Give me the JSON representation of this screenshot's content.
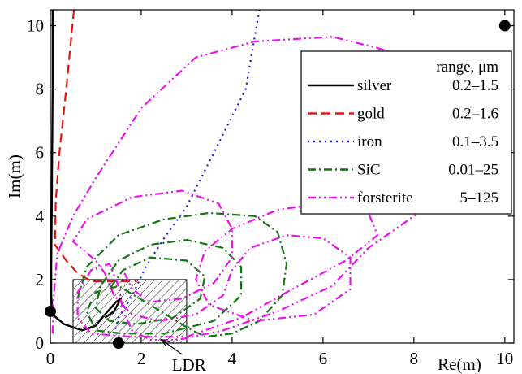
{
  "chart_data": {
    "type": "line",
    "xlabel": "Re(m)",
    "ylabel": "Im(m)",
    "xlim": [
      0,
      10.2
    ],
    "ylim": [
      0,
      10.5
    ],
    "x_ticks": [
      0,
      2,
      4,
      6,
      8,
      10
    ],
    "y_ticks": [
      0,
      2,
      4,
      6,
      8,
      10
    ],
    "legend": {
      "placement": "top-right",
      "header": "range, μm",
      "entries": [
        {
          "name": "silver",
          "range": "0.2–1.5",
          "color": "#000000",
          "dash": "solid"
        },
        {
          "name": "gold",
          "range": "0.2–1.6",
          "color": "#e8130f",
          "dash": "dashed"
        },
        {
          "name": "iron",
          "range": "0.1–3.5",
          "color": "#1a1aee",
          "dash": "dotted"
        },
        {
          "name": "SiC",
          "range": "0.01–25",
          "color": "#117711",
          "dash": "dashdot"
        },
        {
          "name": "forsterite",
          "range": "5–125",
          "color": "#ee11ee",
          "dash": "dashdotdot"
        }
      ]
    },
    "region": {
      "label": "LDR",
      "x": [
        0.5,
        3.0
      ],
      "y": [
        0,
        2.0
      ],
      "hatched": true
    },
    "markers": [
      {
        "x": 0.0,
        "y": 1.0
      },
      {
        "x": 1.5,
        "y": 0.0
      },
      {
        "x": 10.0,
        "y": 10.0
      }
    ],
    "series": [
      {
        "name": "silver",
        "color": "#000000",
        "dash": "solid",
        "points": [
          [
            0.05,
            10.5
          ],
          [
            0.05,
            8.0
          ],
          [
            0.04,
            6.0
          ],
          [
            0.03,
            4.0
          ],
          [
            0.02,
            2.5
          ],
          [
            0.02,
            1.5
          ],
          [
            0.05,
            0.9
          ],
          [
            0.3,
            0.6
          ],
          [
            0.7,
            0.4
          ],
          [
            1.0,
            0.55
          ],
          [
            1.2,
            0.9
          ],
          [
            1.45,
            1.3
          ],
          [
            1.55,
            1.4
          ],
          [
            1.4,
            1.0
          ],
          [
            1.2,
            0.8
          ]
        ]
      },
      {
        "name": "gold",
        "color": "#e8130f",
        "dash": "dashed",
        "points": [
          [
            0.52,
            10.5
          ],
          [
            0.35,
            8.0
          ],
          [
            0.2,
            6.0
          ],
          [
            0.12,
            4.5
          ],
          [
            0.1,
            3.1
          ],
          [
            0.35,
            2.6
          ],
          [
            0.6,
            2.2
          ],
          [
            0.9,
            1.95
          ],
          [
            1.5,
            1.95
          ],
          [
            1.9,
            1.95
          ]
        ]
      },
      {
        "name": "iron",
        "color": "#1a1aee",
        "dash": "dotted",
        "points": [
          [
            4.6,
            10.5
          ],
          [
            4.3,
            8.0
          ],
          [
            3.6,
            6.0
          ],
          [
            3.0,
            4.3
          ],
          [
            2.5,
            3.3
          ],
          [
            2.1,
            2.4
          ],
          [
            1.8,
            1.5
          ],
          [
            1.5,
            0.8
          ],
          [
            1.4,
            0.3
          ]
        ]
      },
      {
        "name": "SiC",
        "color": "#117711",
        "dash": "dashdot",
        "points": [
          [
            0.6,
            1.4
          ],
          [
            0.8,
            2.4
          ],
          [
            1.5,
            3.4
          ],
          [
            2.5,
            3.9
          ],
          [
            3.5,
            4.1
          ],
          [
            4.5,
            4.0
          ],
          [
            5.0,
            3.5
          ],
          [
            5.2,
            2.5
          ],
          [
            5.1,
            1.5
          ],
          [
            4.6,
            0.7
          ],
          [
            4.0,
            0.3
          ],
          [
            3.4,
            0.2
          ],
          [
            3.0,
            0.5
          ],
          [
            2.2,
            1.2
          ],
          [
            1.5,
            1.8
          ],
          [
            1.0,
            1.6
          ],
          [
            0.8,
            1.0
          ],
          [
            1.0,
            0.4
          ],
          [
            1.6,
            0.3
          ],
          [
            2.5,
            0.3
          ],
          [
            3.6,
            0.7
          ],
          [
            4.2,
            1.5
          ],
          [
            4.2,
            2.4
          ],
          [
            3.8,
            3.0
          ],
          [
            3.0,
            3.25
          ],
          [
            2.2,
            3.1
          ],
          [
            1.5,
            2.6
          ],
          [
            1.1,
            1.8
          ],
          [
            1.0,
            1.1
          ],
          [
            1.3,
            0.7
          ],
          [
            1.9,
            0.6
          ],
          [
            2.7,
            0.8
          ],
          [
            3.3,
            1.4
          ],
          [
            3.4,
            2.1
          ],
          [
            3.0,
            2.6
          ],
          [
            2.2,
            2.7
          ],
          [
            1.6,
            2.3
          ],
          [
            1.3,
            1.7
          ]
        ]
      },
      {
        "name": "forsterite",
        "color": "#ee11ee",
        "dash": "dashdotdot",
        "points": [
          [
            0.05,
            0.3
          ],
          [
            0.06,
            1.2
          ],
          [
            0.15,
            2.8
          ],
          [
            0.5,
            4.0
          ],
          [
            1.0,
            5.2
          ],
          [
            2.0,
            7.4
          ],
          [
            3.2,
            9.0
          ],
          [
            4.5,
            9.5
          ],
          [
            6.2,
            9.65
          ],
          [
            7.2,
            9.3
          ],
          [
            8.2,
            8.8
          ],
          [
            9.2,
            8.0
          ],
          [
            9.6,
            6.2
          ],
          [
            9.2,
            5.0
          ],
          [
            8.0,
            4.0
          ],
          [
            7.0,
            3.0
          ],
          [
            6.2,
            1.8
          ],
          [
            5.0,
            1.0
          ],
          [
            3.8,
            0.4
          ],
          [
            2.8,
            0.1
          ],
          [
            2.2,
            0.1
          ],
          [
            1.8,
            0.4
          ],
          [
            1.6,
            1.0
          ],
          [
            1.5,
            1.8
          ],
          [
            1.3,
            2.5
          ],
          [
            0.9,
            2.3
          ],
          [
            0.6,
            1.6
          ],
          [
            0.6,
            0.8
          ],
          [
            0.9,
            0.3
          ],
          [
            1.8,
            0.2
          ],
          [
            3.0,
            0.2
          ],
          [
            4.2,
            0.8
          ],
          [
            5.2,
            1.6
          ],
          [
            6.5,
            2.6
          ],
          [
            7.2,
            3.4
          ],
          [
            7.0,
            4.1
          ],
          [
            6.0,
            4.4
          ],
          [
            5.0,
            4.2
          ],
          [
            4.0,
            3.6
          ],
          [
            3.4,
            2.9
          ],
          [
            3.2,
            2.0
          ],
          [
            3.5,
            1.2
          ],
          [
            4.5,
            0.7
          ],
          [
            5.8,
            0.9
          ],
          [
            6.6,
            1.7
          ],
          [
            6.6,
            2.7
          ],
          [
            6.0,
            3.3
          ],
          [
            5.2,
            3.4
          ],
          [
            4.4,
            3.0
          ],
          [
            4.0,
            2.3
          ],
          [
            3.8,
            1.5
          ],
          [
            3.2,
            0.9
          ],
          [
            2.4,
            0.7
          ],
          [
            1.8,
            0.9
          ],
          [
            1.4,
            1.5
          ],
          [
            1.2,
            2.2
          ],
          [
            1.0,
            2.6
          ],
          [
            0.5,
            3.2
          ],
          [
            0.8,
            3.9
          ],
          [
            1.8,
            4.6
          ],
          [
            2.9,
            4.8
          ],
          [
            3.7,
            4.4
          ],
          [
            4.0,
            3.6
          ],
          [
            4.0,
            2.7
          ],
          [
            3.6,
            1.9
          ],
          [
            2.9,
            1.4
          ],
          [
            2.2,
            1.3
          ],
          [
            1.8,
            1.7
          ],
          [
            1.6,
            2.3
          ]
        ]
      }
    ]
  }
}
